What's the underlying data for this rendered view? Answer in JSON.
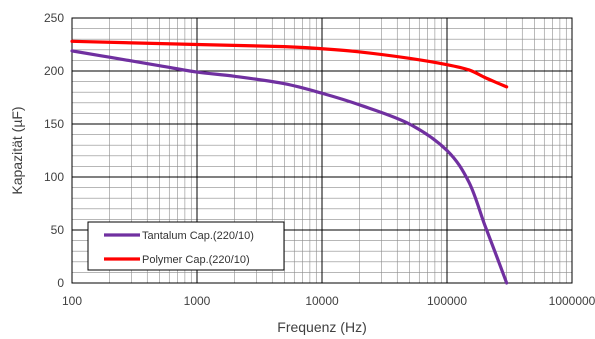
{
  "chart_data": {
    "type": "line",
    "xlabel": "Frequenz (Hz)",
    "ylabel": "Kapazität (µF)",
    "x_scale": "log",
    "xlim": [
      100,
      1000000
    ],
    "ylim": [
      0,
      250
    ],
    "x_ticks": [
      100,
      1000,
      10000,
      100000,
      1000000
    ],
    "x_tick_labels": [
      "100",
      "1000",
      "10000",
      "100000",
      "1000000"
    ],
    "y_ticks": [
      0,
      50,
      100,
      150,
      200,
      250
    ],
    "y_tick_labels": [
      "0",
      "50",
      "100",
      "150",
      "200",
      "250"
    ],
    "y_minor_step": 10,
    "grid": true,
    "legend_position": "bottom-left",
    "series": [
      {
        "name": "Tantalum Cap.(220/10)",
        "color": "#7030A0",
        "x": [
          100,
          200,
          500,
          1000,
          2000,
          5000,
          10000,
          20000,
          50000,
          100000,
          150000,
          200000,
          250000,
          300000
        ],
        "y": [
          219,
          213,
          205,
          199,
          195,
          188,
          179,
          168,
          150,
          125,
          95,
          55,
          25,
          0
        ]
      },
      {
        "name": "Polymer Cap.(220/10)",
        "color": "#FF0000",
        "x": [
          100,
          1000,
          5000,
          10000,
          20000,
          50000,
          100000,
          150000,
          200000,
          250000,
          300000
        ],
        "y": [
          228,
          225,
          223,
          221,
          218,
          212,
          206,
          201,
          194,
          189,
          185
        ]
      }
    ]
  }
}
